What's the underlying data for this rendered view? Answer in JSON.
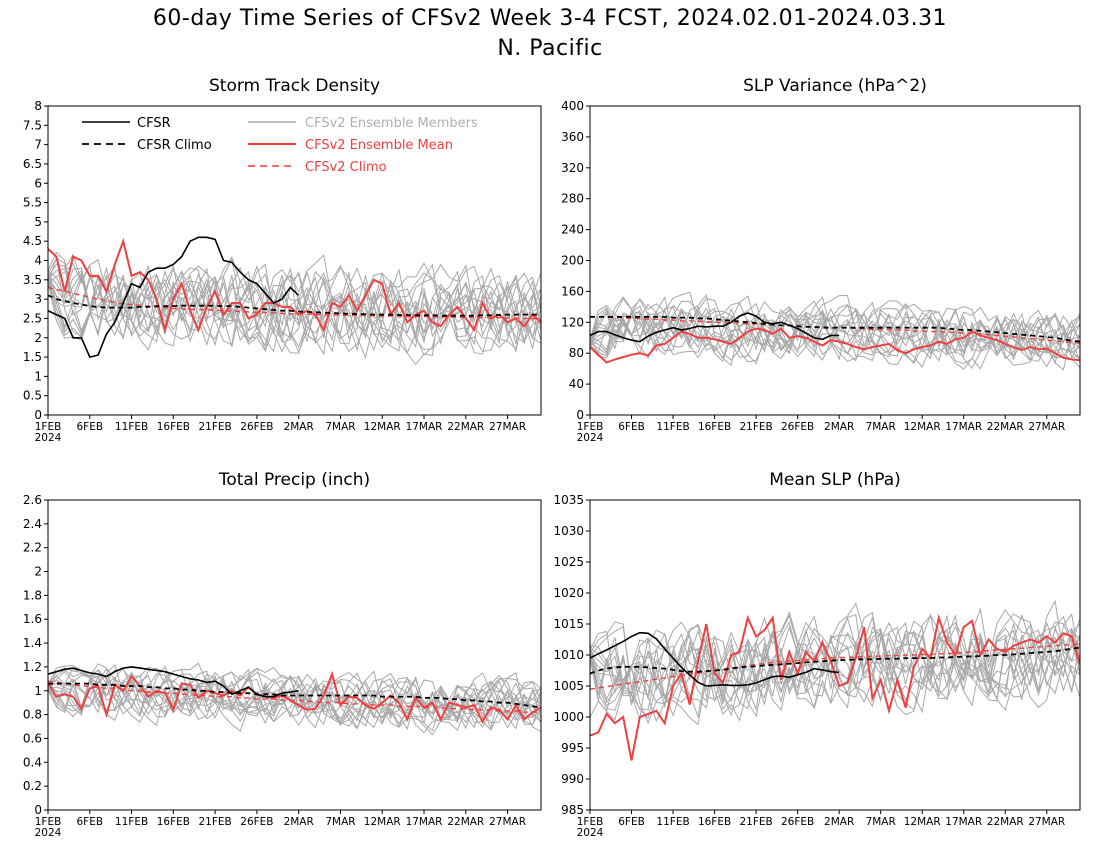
{
  "figure": {
    "title_line1": "60-day Time Series of CFSv2 Week 3-4 FCST, 2024.02.01-2024.03.31",
    "title_line2": "N. Pacific"
  },
  "legend": {
    "cfsr": "CFSR",
    "cfsr_climo": "CFSR Climo",
    "members": "CFSv2 Ensemble Members",
    "ens_mean": "CFSv2 Ensemble Mean",
    "cfsv2_climo": "CFSv2 Climo"
  },
  "colors": {
    "cfsr": "#000000",
    "cfsr_climo": "#000000",
    "members": "#a8a8a8",
    "ens_mean": "#ee4040",
    "cfsv2_climo": "#ee4040",
    "members_legend_text": "#b0b0b0"
  },
  "x_axis": {
    "n_days": 60,
    "tick_days": [
      1,
      6,
      11,
      16,
      21,
      26,
      31,
      36,
      41,
      46,
      51,
      56
    ],
    "tick_labels": [
      "1FEB",
      "6FEB",
      "11FEB",
      "16FEB",
      "21FEB",
      "26FEB",
      "2MAR",
      "7MAR",
      "12MAR",
      "17MAR",
      "22MAR",
      "27MAR"
    ],
    "year_label": "2024"
  },
  "chart_data": [
    {
      "type": "line",
      "title": "Storm Track Density",
      "ylim": [
        0,
        8
      ],
      "yticks": [
        "0",
        "0.5",
        "1",
        "1.5",
        "2",
        "2.5",
        "3",
        "3.5",
        "4",
        "4.5",
        "5",
        "5.5",
        "6",
        "6.5",
        "7",
        "7.5",
        "8"
      ],
      "legend_position": "top-left",
      "series": [
        {
          "name": "CFSR",
          "role": "cfsr",
          "values": [
            2.7,
            2.6,
            2.5,
            2.0,
            2.0,
            1.5,
            1.55,
            2.1,
            2.4,
            2.9,
            3.4,
            3.3,
            3.7,
            3.8,
            3.8,
            3.9,
            4.1,
            4.5,
            4.6,
            4.6,
            4.55,
            4.0,
            3.95,
            3.7,
            3.5,
            3.4,
            3.15,
            2.9,
            3.0,
            3.3,
            3.1
          ]
        },
        {
          "name": "CFSR Climo",
          "role": "cfsr_climo",
          "values": [
            3.1,
            3.0,
            2.95,
            2.9,
            2.86,
            2.82,
            2.8,
            2.78,
            2.78,
            2.78,
            2.78,
            2.8,
            2.8,
            2.82,
            2.82,
            2.82,
            2.83,
            2.83,
            2.83,
            2.83,
            2.83,
            2.82,
            2.82,
            2.8,
            2.78,
            2.76,
            2.74,
            2.72,
            2.7,
            2.7,
            2.68,
            2.67,
            2.66,
            2.65,
            2.64,
            2.63,
            2.62,
            2.62,
            2.61,
            2.6,
            2.6,
            2.6,
            2.59,
            2.59,
            2.58,
            2.58,
            2.58,
            2.57,
            2.57,
            2.57,
            2.57,
            2.57,
            2.58,
            2.58,
            2.59,
            2.6,
            2.6,
            2.6,
            2.6,
            2.6
          ]
        },
        {
          "name": "CFSv2 Ensemble Mean",
          "role": "ens_mean",
          "values": [
            4.3,
            4.1,
            3.2,
            4.1,
            4.0,
            3.6,
            3.6,
            3.2,
            3.9,
            4.5,
            3.6,
            3.7,
            3.5,
            3.0,
            2.2,
            3.0,
            3.4,
            2.7,
            2.2,
            2.8,
            3.2,
            2.6,
            2.9,
            2.9,
            2.5,
            2.6,
            2.9,
            2.9,
            2.8,
            2.8,
            2.6,
            2.7,
            2.6,
            2.2,
            2.9,
            2.8,
            3.1,
            2.7,
            3.1,
            3.5,
            3.4,
            2.6,
            2.9,
            2.4,
            2.6,
            2.7,
            2.4,
            2.3,
            2.6,
            2.8,
            2.5,
            2.2,
            2.9,
            2.5,
            2.6,
            2.4,
            2.5,
            2.3,
            2.6,
            2.4
          ]
        },
        {
          "name": "CFSv2 Climo",
          "role": "cfsv2_climo",
          "values": [
            3.3,
            3.25,
            3.2,
            3.15,
            3.1,
            3.05,
            3.0,
            2.96,
            2.92,
            2.88,
            2.86,
            2.84,
            2.82,
            2.8,
            2.78,
            2.76,
            2.75,
            2.74,
            2.73,
            2.72,
            2.71,
            2.7,
            2.69,
            2.68,
            2.67,
            2.66,
            2.65,
            2.64,
            2.63,
            2.62,
            2.62,
            2.61,
            2.6,
            2.6,
            2.59,
            2.59,
            2.58,
            2.58,
            2.57,
            2.57,
            2.56,
            2.56,
            2.56,
            2.55,
            2.55,
            2.55,
            2.54,
            2.54,
            2.54,
            2.53,
            2.53,
            2.53,
            2.52,
            2.52,
            2.52,
            2.51,
            2.51,
            2.5,
            2.5,
            2.5
          ]
        }
      ],
      "members": {
        "count": 16,
        "center": 2.9,
        "spread": 0.9
      }
    },
    {
      "type": "line",
      "title": "SLP Variance (hPa^2)",
      "ylim": [
        0,
        400
      ],
      "yticks": [
        "0",
        "40",
        "80",
        "120",
        "160",
        "200",
        "240",
        "280",
        "320",
        "360",
        "400"
      ],
      "series": [
        {
          "name": "CFSR",
          "role": "cfsr",
          "values": [
            103,
            108,
            108,
            104,
            100,
            97,
            95,
            102,
            107,
            110,
            113,
            110,
            112,
            115,
            114,
            115,
            115,
            120,
            128,
            132,
            128,
            120,
            118,
            120,
            116,
            112,
            106,
            100,
            98,
            103,
            103
          ]
        },
        {
          "name": "CFSR Climo",
          "role": "cfsr_climo",
          "values": [
            127,
            127,
            127,
            127,
            127,
            127,
            127,
            127,
            127,
            127,
            126,
            126,
            126,
            125,
            125,
            124,
            123,
            122,
            121,
            120,
            119,
            118,
            117,
            116,
            116,
            115,
            114,
            114,
            113,
            113,
            113,
            113,
            113,
            113,
            113,
            113,
            113,
            113,
            113,
            113,
            113,
            113,
            113,
            112,
            111,
            110,
            110,
            109,
            108,
            107,
            106,
            105,
            104,
            103,
            102,
            101,
            100,
            98,
            96,
            95
          ]
        },
        {
          "name": "CFSv2 Ensemble Mean",
          "role": "ens_mean",
          "values": [
            88,
            78,
            68,
            72,
            75,
            78,
            80,
            77,
            90,
            92,
            100,
            108,
            105,
            100,
            100,
            98,
            95,
            92,
            100,
            108,
            112,
            110,
            105,
            112,
            100,
            102,
            100,
            95,
            90,
            97,
            95,
            92,
            88,
            85,
            88,
            90,
            92,
            84,
            80,
            85,
            88,
            90,
            95,
            92,
            98,
            100,
            108,
            103,
            100,
            97,
            92,
            88,
            84,
            88,
            85,
            86,
            80,
            74,
            72,
            71
          ]
        },
        {
          "name": "CFSv2 Climo",
          "role": "cfsv2_climo",
          "values": [
            127,
            127,
            127,
            126,
            126,
            125,
            125,
            124,
            124,
            123,
            123,
            122,
            122,
            121,
            121,
            120,
            120,
            119,
            119,
            118,
            118,
            117,
            117,
            116,
            116,
            115,
            115,
            114,
            114,
            113,
            113,
            113,
            112,
            112,
            111,
            111,
            110,
            110,
            110,
            109,
            109,
            108,
            108,
            107,
            107,
            106,
            106,
            105,
            104,
            103,
            102,
            101,
            100,
            99,
            98,
            97,
            96,
            95,
            94,
            93
          ]
        }
      ],
      "members": {
        "count": 16,
        "center": 100,
        "spread": 30
      }
    },
    {
      "type": "line",
      "title": "Total Precip (inch)",
      "ylim": [
        0,
        2.6
      ],
      "yticks": [
        "0",
        "0.2",
        "0.4",
        "0.6",
        "0.8",
        "1",
        "1.2",
        "1.4",
        "1.6",
        "1.8",
        "2",
        "2.2",
        "2.4",
        "2.6"
      ],
      "series": [
        {
          "name": "CFSR",
          "role": "cfsr",
          "values": [
            1.14,
            1.16,
            1.18,
            1.19,
            1.17,
            1.15,
            1.14,
            1.12,
            1.16,
            1.19,
            1.2,
            1.19,
            1.18,
            1.17,
            1.16,
            1.14,
            1.12,
            1.1,
            1.09,
            1.07,
            1.08,
            1.04,
            0.97,
            1.0,
            1.03,
            0.97,
            0.95,
            0.95,
            0.98,
            0.99,
            1.0
          ]
        },
        {
          "name": "CFSR Climo",
          "role": "cfsr_climo",
          "values": [
            1.06,
            1.06,
            1.06,
            1.06,
            1.06,
            1.06,
            1.05,
            1.05,
            1.05,
            1.04,
            1.04,
            1.04,
            1.03,
            1.03,
            1.02,
            1.02,
            1.01,
            1.01,
            1.0,
            1.0,
            0.99,
            0.99,
            0.98,
            0.98,
            0.98,
            0.97,
            0.97,
            0.97,
            0.96,
            0.96,
            0.96,
            0.96,
            0.96,
            0.96,
            0.96,
            0.96,
            0.96,
            0.96,
            0.96,
            0.96,
            0.95,
            0.95,
            0.95,
            0.95,
            0.95,
            0.94,
            0.94,
            0.94,
            0.93,
            0.93,
            0.92,
            0.92,
            0.91,
            0.91,
            0.9,
            0.9,
            0.89,
            0.88,
            0.87,
            0.86
          ]
        },
        {
          "name": "CFSv2 Ensemble Mean",
          "role": "ens_mean",
          "values": [
            1.07,
            0.95,
            0.97,
            0.95,
            0.85,
            1.02,
            1.04,
            0.8,
            1.05,
            1.0,
            1.12,
            1.04,
            0.95,
            1.0,
            0.98,
            0.84,
            1.06,
            1.05,
            0.94,
            1.0,
            0.98,
            0.96,
            1.0,
            0.96,
            1.03,
            0.97,
            0.95,
            0.94,
            0.96,
            0.92,
            0.88,
            0.84,
            0.85,
            0.96,
            1.14,
            0.88,
            0.95,
            0.94,
            0.88,
            0.85,
            0.9,
            0.96,
            0.9,
            0.76,
            0.94,
            0.86,
            0.9,
            0.76,
            0.9,
            0.88,
            0.86,
            0.88,
            0.74,
            0.86,
            0.84,
            0.76,
            0.88,
            0.76,
            0.82,
            0.86
          ]
        },
        {
          "name": "CFSv2 Climo",
          "role": "cfsv2_climo",
          "values": [
            1.08,
            1.07,
            1.06,
            1.05,
            1.04,
            1.04,
            1.03,
            1.02,
            1.02,
            1.01,
            1.0,
            1.0,
            0.99,
            0.99,
            0.98,
            0.98,
            0.97,
            0.97,
            0.96,
            0.96,
            0.95,
            0.95,
            0.95,
            0.94,
            0.94,
            0.93,
            0.93,
            0.93,
            0.92,
            0.92,
            0.92,
            0.91,
            0.91,
            0.9,
            0.9,
            0.9,
            0.89,
            0.89,
            0.89,
            0.88,
            0.88,
            0.88,
            0.87,
            0.87,
            0.87,
            0.86,
            0.86,
            0.86,
            0.85,
            0.85,
            0.85,
            0.84,
            0.84,
            0.84,
            0.83,
            0.83,
            0.83,
            0.82,
            0.82,
            0.82
          ]
        }
      ],
      "members": {
        "count": 16,
        "center": 0.95,
        "spread": 0.18
      }
    },
    {
      "type": "line",
      "title": "Mean SLP (hPa)",
      "ylim": [
        985,
        1035
      ],
      "yticks": [
        "985",
        "990",
        "995",
        "1000",
        "1005",
        "1010",
        "1015",
        "1020",
        "1025",
        "1030",
        "1035"
      ],
      "series": [
        {
          "name": "CFSR",
          "role": "cfsr",
          "values": [
            1009.5,
            1010.2,
            1010.8,
            1011.5,
            1012.2,
            1013.0,
            1013.6,
            1013.5,
            1012.6,
            1011.0,
            1009.5,
            1008.0,
            1006.8,
            1005.6,
            1005.0,
            1005.1,
            1005.2,
            1005.1,
            1005.1,
            1005.2,
            1005.5,
            1006.0,
            1006.5,
            1006.6,
            1006.4,
            1006.8,
            1007.2,
            1007.8,
            1007.6,
            1007.3,
            1007.2
          ]
        },
        {
          "name": "CFSR Climo",
          "role": "cfsr_climo",
          "values": [
            1007.0,
            1007.5,
            1007.8,
            1008.0,
            1008.1,
            1008.1,
            1008.1,
            1008.0,
            1007.9,
            1007.8,
            1007.6,
            1007.4,
            1007.3,
            1007.3,
            1007.4,
            1007.5,
            1007.6,
            1007.8,
            1008.0,
            1008.1,
            1008.2,
            1008.3,
            1008.4,
            1008.5,
            1008.6,
            1008.7,
            1008.8,
            1008.9,
            1009.0,
            1009.1,
            1009.2,
            1009.2,
            1009.3,
            1009.3,
            1009.3,
            1009.4,
            1009.4,
            1009.4,
            1009.5,
            1009.5,
            1009.5,
            1009.5,
            1009.6,
            1009.6,
            1009.7,
            1009.7,
            1009.8,
            1009.8,
            1009.9,
            1010.0,
            1010.0,
            1010.1,
            1010.2,
            1010.3,
            1010.4,
            1010.5,
            1010.6,
            1010.8,
            1011.0,
            1011.2
          ]
        },
        {
          "name": "CFSv2 Ensemble Mean",
          "role": "ens_mean",
          "values": [
            997.0,
            997.5,
            1000.5,
            999.0,
            1000.0,
            993.0,
            1000.0,
            1000.5,
            1001.0,
            999.0,
            1005.0,
            1007.0,
            1002.0,
            1009.0,
            1015.0,
            1007.0,
            1005.5,
            1010.0,
            1010.5,
            1016.0,
            1013.0,
            1014.0,
            1016.0,
            1006.0,
            1010.5,
            1007.0,
            1010.5,
            1009.0,
            1012.0,
            1009.0,
            1005.0,
            1005.5,
            1009.5,
            1014.5,
            1003.0,
            1006.0,
            1001.0,
            1006.0,
            1001.5,
            1008.0,
            1011.0,
            1009.5,
            1016.0,
            1012.0,
            1010.0,
            1014.5,
            1015.5,
            1010.0,
            1012.5,
            1011.0,
            1010.5,
            1011.5,
            1012.0,
            1012.5,
            1012.0,
            1013.0,
            1012.0,
            1013.5,
            1013.0,
            1008.5
          ]
        },
        {
          "name": "CFSv2 Climo",
          "role": "cfsv2_climo",
          "values": [
            1004.5,
            1004.7,
            1004.9,
            1005.1,
            1005.3,
            1005.5,
            1005.7,
            1005.9,
            1006.1,
            1006.3,
            1006.5,
            1006.7,
            1006.9,
            1007.1,
            1007.3,
            1007.5,
            1007.7,
            1007.9,
            1008.1,
            1008.3,
            1008.5,
            1008.6,
            1008.8,
            1008.9,
            1009.0,
            1009.1,
            1009.2,
            1009.3,
            1009.4,
            1009.5,
            1009.6,
            1009.6,
            1009.7,
            1009.7,
            1009.8,
            1009.8,
            1009.9,
            1009.9,
            1010.0,
            1010.0,
            1010.1,
            1010.1,
            1010.2,
            1010.2,
            1010.3,
            1010.4,
            1010.5,
            1010.6,
            1010.7,
            1010.8,
            1010.9,
            1011.0,
            1011.1,
            1011.2,
            1011.3,
            1011.4,
            1011.5,
            1011.6,
            1011.7,
            1011.8
          ]
        }
      ],
      "members": {
        "count": 16,
        "center": 1008,
        "spread": 6
      }
    }
  ]
}
